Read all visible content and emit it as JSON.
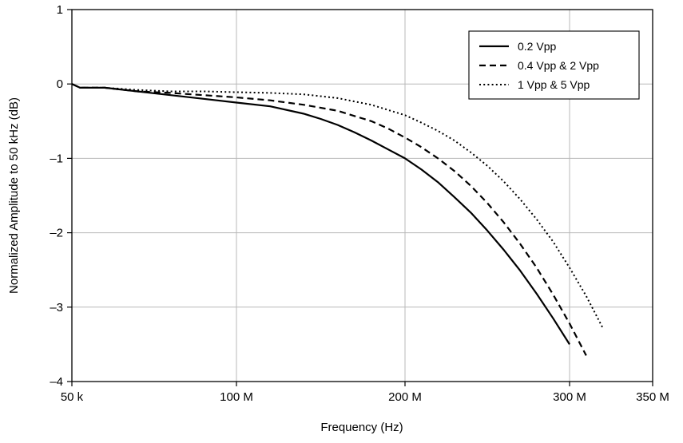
{
  "chart_data": {
    "type": "line",
    "title": "",
    "xlabel": "Frequency (Hz)",
    "ylabel": "Normalized Amplitude to 50 kHz (dB)",
    "x_tick_labels": [
      "50 k",
      "100 M",
      "200 M",
      "300 M",
      "350 M"
    ],
    "y_tick_labels": [
      "1",
      "0",
      "–1",
      "–2",
      "–3",
      "–4"
    ],
    "ylim": [
      -4,
      1
    ],
    "grid": true,
    "legend_position": "top-right",
    "series": [
      {
        "name": "0.2 Vpp",
        "line_style": "solid",
        "x": [
          "50 k",
          "5 M",
          "10 M",
          "20 M",
          "40 M",
          "60 M",
          "80 M",
          "100 M",
          "120 M",
          "140 M",
          "150 M",
          "160 M",
          "170 M",
          "180 M",
          "190 M",
          "200 M",
          "210 M",
          "220 M",
          "230 M",
          "240 M",
          "250 M",
          "260 M",
          "270 M",
          "280 M",
          "290 M",
          "300 M"
        ],
        "y": [
          0,
          -0.05,
          -0.05,
          -0.05,
          -0.1,
          -0.15,
          -0.2,
          -0.25,
          -0.3,
          -0.4,
          -0.47,
          -0.55,
          -0.65,
          -0.76,
          -0.88,
          -1.0,
          -1.15,
          -1.32,
          -1.52,
          -1.73,
          -1.97,
          -2.23,
          -2.51,
          -2.82,
          -3.15,
          -3.5
        ]
      },
      {
        "name": "0.4 Vpp & 2 Vpp",
        "line_style": "dashed",
        "x": [
          "50 k",
          "5 M",
          "10 M",
          "20 M",
          "40 M",
          "60 M",
          "80 M",
          "100 M",
          "120 M",
          "140 M",
          "160 M",
          "180 M",
          "190 M",
          "200 M",
          "210 M",
          "220 M",
          "230 M",
          "240 M",
          "250 M",
          "260 M",
          "270 M",
          "280 M",
          "290 M",
          "300 M",
          "310 M"
        ],
        "y": [
          0,
          -0.05,
          -0.05,
          -0.05,
          -0.1,
          -0.12,
          -0.15,
          -0.18,
          -0.22,
          -0.28,
          -0.36,
          -0.5,
          -0.6,
          -0.72,
          -0.85,
          -1.0,
          -1.17,
          -1.37,
          -1.6,
          -1.86,
          -2.15,
          -2.47,
          -2.83,
          -3.22,
          -3.65
        ]
      },
      {
        "name": "1 Vpp & 5 Vpp",
        "line_style": "dotted",
        "x": [
          "50 k",
          "5 M",
          "10 M",
          "20 M",
          "40 M",
          "60 M",
          "80 M",
          "100 M",
          "120 M",
          "140 M",
          "160 M",
          "180 M",
          "200 M",
          "210 M",
          "220 M",
          "230 M",
          "240 M",
          "250 M",
          "260 M",
          "270 M",
          "280 M",
          "290 M",
          "300 M",
          "310 M",
          "320 M"
        ],
        "y": [
          0,
          -0.05,
          -0.05,
          -0.05,
          -0.08,
          -0.1,
          -0.1,
          -0.11,
          -0.12,
          -0.14,
          -0.19,
          -0.28,
          -0.42,
          -0.52,
          -0.63,
          -0.76,
          -0.92,
          -1.1,
          -1.31,
          -1.55,
          -1.82,
          -2.12,
          -2.47,
          -2.85,
          -3.28
        ]
      }
    ]
  }
}
